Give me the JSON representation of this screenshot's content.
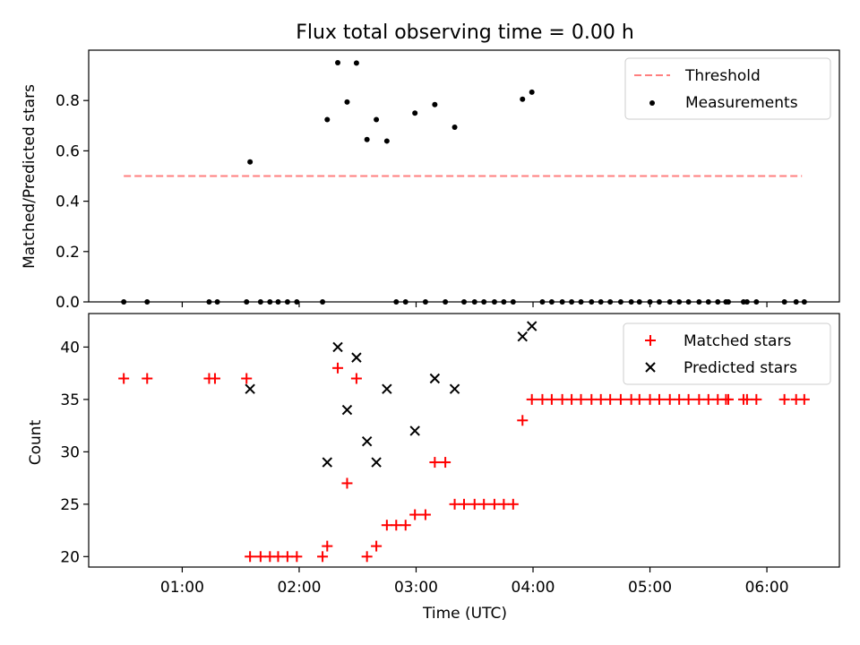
{
  "chart_data": {
    "title": "Flux total observing time = 0.00 h",
    "xlabel": "Time (UTC)",
    "x_ticks": [
      "01:00",
      "02:00",
      "03:00",
      "04:00",
      "05:00",
      "06:00"
    ],
    "x_tick_hours": [
      1,
      2,
      3,
      4,
      5,
      6
    ],
    "xlim_hours": [
      0.2,
      6.62
    ],
    "panels": [
      {
        "id": "ratio",
        "type": "scatter",
        "ylabel": "Matched/Predicted stars",
        "ylim": [
          0,
          1.0
        ],
        "y_ticks": [
          0.0,
          0.2,
          0.4,
          0.6,
          0.8
        ],
        "y_tick_labels": [
          "0.0",
          "0.2",
          "0.4",
          "0.6",
          "0.8"
        ],
        "legend": {
          "placement": "top-right",
          "entries": [
            "Threshold",
            "Measurements"
          ]
        },
        "threshold": {
          "name": "Threshold",
          "value": 0.5,
          "x_range": [
            0.5,
            6.3
          ],
          "color": "#ff7f7f",
          "style": "dashed"
        },
        "series": [
          {
            "name": "Measurements",
            "color": "#000000",
            "marker": "dot",
            "x": [
              0.5,
              0.7,
              1.23,
              1.3,
              1.55,
              1.58,
              1.67,
              1.75,
              1.82,
              1.9,
              1.98,
              2.2,
              2.24,
              2.33,
              2.41,
              2.49,
              2.58,
              2.66,
              2.75,
              2.83,
              2.91,
              2.99,
              3.08,
              3.16,
              3.25,
              3.33,
              3.41,
              3.5,
              3.58,
              3.67,
              3.75,
              3.83,
              3.91,
              3.99,
              4.08,
              4.16,
              4.25,
              4.33,
              4.41,
              4.5,
              4.58,
              4.66,
              4.75,
              4.84,
              4.91,
              5.0,
              5.08,
              5.17,
              5.25,
              5.33,
              5.42,
              5.5,
              5.58,
              5.65,
              5.67,
              5.8,
              5.83,
              5.91,
              6.15,
              6.25,
              6.32
            ],
            "y": [
              0,
              0,
              0,
              0,
              0,
              0.556,
              0,
              0,
              0,
              0,
              0,
              0,
              0.724,
              0.95,
              0.794,
              0.949,
              0.645,
              0.724,
              0.639,
              0,
              0,
              0.75,
              0,
              0.784,
              0,
              0.694,
              0,
              0,
              0,
              0,
              0,
              0,
              0.805,
              0.833,
              0,
              0,
              0,
              0,
              0,
              0,
              0,
              0,
              0,
              0,
              0,
              0,
              0,
              0,
              0,
              0,
              0,
              0,
              0,
              0,
              0,
              0,
              0,
              0,
              0,
              0,
              0
            ]
          }
        ]
      },
      {
        "id": "count",
        "type": "scatter",
        "ylabel": "Count",
        "ylim": [
          19,
          43.2
        ],
        "y_ticks": [
          20,
          25,
          30,
          35,
          40
        ],
        "y_tick_labels": [
          "20",
          "25",
          "30",
          "35",
          "40"
        ],
        "legend": {
          "placement": "top-right",
          "entries": [
            "Matched stars",
            "Predicted stars"
          ]
        },
        "series": [
          {
            "name": "Matched stars",
            "color": "#ff0000",
            "marker": "plus",
            "x": [
              0.5,
              0.7,
              1.23,
              1.28,
              1.55,
              1.58,
              1.67,
              1.75,
              1.82,
              1.9,
              1.98,
              2.2,
              2.24,
              2.33,
              2.41,
              2.49,
              2.58,
              2.66,
              2.75,
              2.83,
              2.91,
              2.99,
              3.08,
              3.16,
              3.25,
              3.33,
              3.41,
              3.5,
              3.58,
              3.67,
              3.75,
              3.83,
              3.91,
              3.99,
              4.08,
              4.16,
              4.25,
              4.33,
              4.41,
              4.5,
              4.58,
              4.66,
              4.75,
              4.84,
              4.91,
              5.0,
              5.08,
              5.17,
              5.25,
              5.33,
              5.42,
              5.5,
              5.58,
              5.65,
              5.67,
              5.8,
              5.83,
              5.91,
              6.15,
              6.25,
              6.32
            ],
            "y": [
              37,
              37,
              37,
              37,
              37,
              20,
              20,
              20,
              20,
              20,
              20,
              20,
              21,
              38,
              27,
              37,
              20,
              21,
              23,
              23,
              23,
              24,
              24,
              29,
              29,
              25,
              25,
              25,
              25,
              25,
              25,
              25,
              33,
              35,
              35,
              35,
              35,
              35,
              35,
              35,
              35,
              35,
              35,
              35,
              35,
              35,
              35,
              35,
              35,
              35,
              35,
              35,
              35,
              35,
              35,
              35,
              35,
              35,
              35,
              35,
              35
            ]
          },
          {
            "name": "Predicted stars",
            "color": "#000000",
            "marker": "x",
            "x": [
              1.58,
              2.24,
              2.33,
              2.41,
              2.49,
              2.58,
              2.66,
              2.75,
              2.99,
              3.16,
              3.33,
              3.91,
              3.99
            ],
            "y": [
              36,
              29,
              40,
              34,
              39,
              31,
              29,
              36,
              32,
              37,
              36,
              41,
              42
            ]
          }
        ]
      }
    ]
  }
}
